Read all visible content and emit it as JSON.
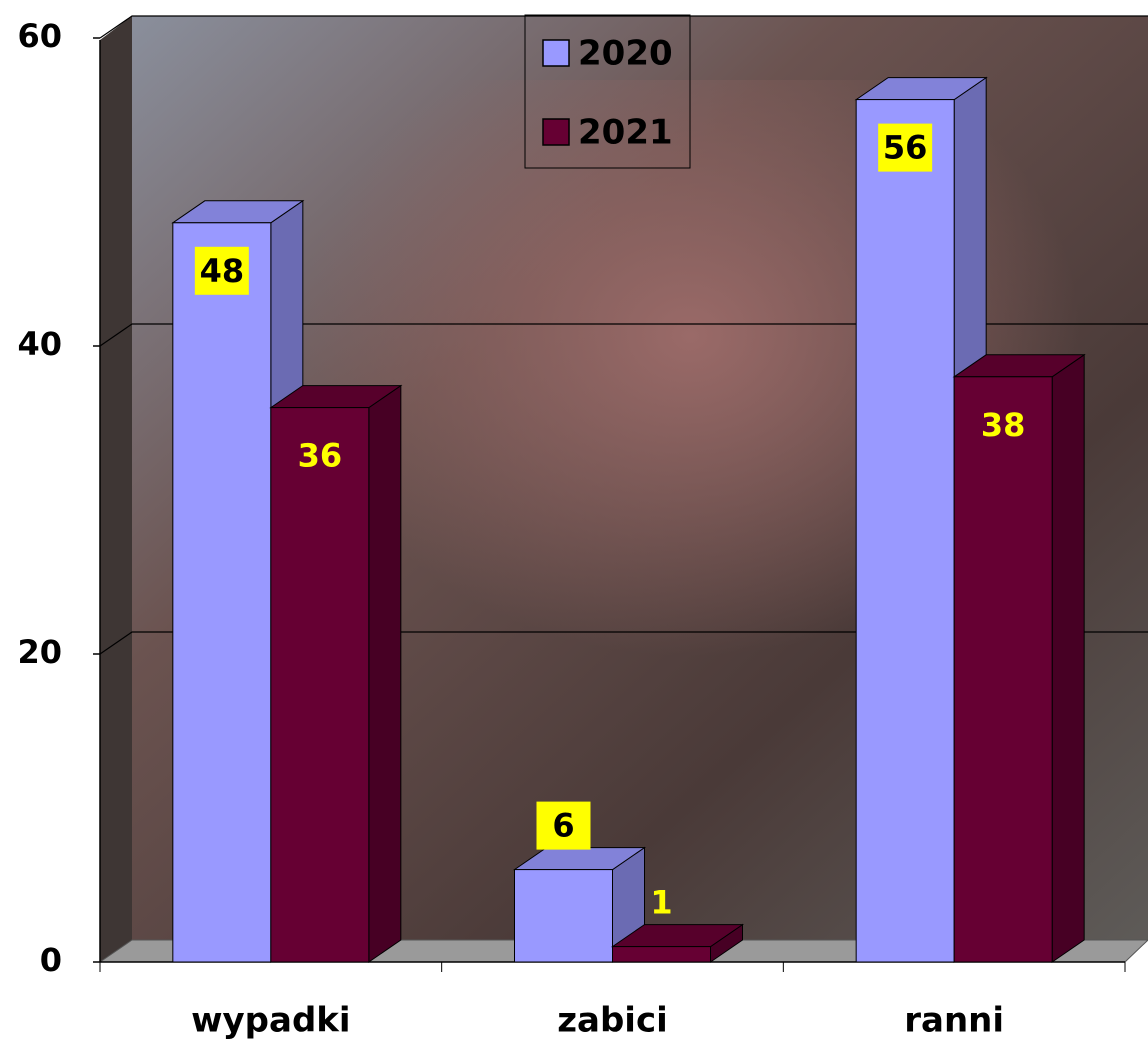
{
  "chart_data": {
    "type": "bar3d",
    "categories": [
      "wypadki",
      "zabici",
      "ranni"
    ],
    "series": [
      {
        "name": "2020",
        "color": "#9999ff",
        "values": [
          48,
          6,
          56
        ]
      },
      {
        "name": "2021",
        "color": "#660033",
        "values": [
          36,
          1,
          38
        ]
      }
    ],
    "ylim": [
      0,
      60
    ],
    "yticks": [
      0,
      20,
      40,
      60
    ],
    "grid": true,
    "legend": "top"
  }
}
